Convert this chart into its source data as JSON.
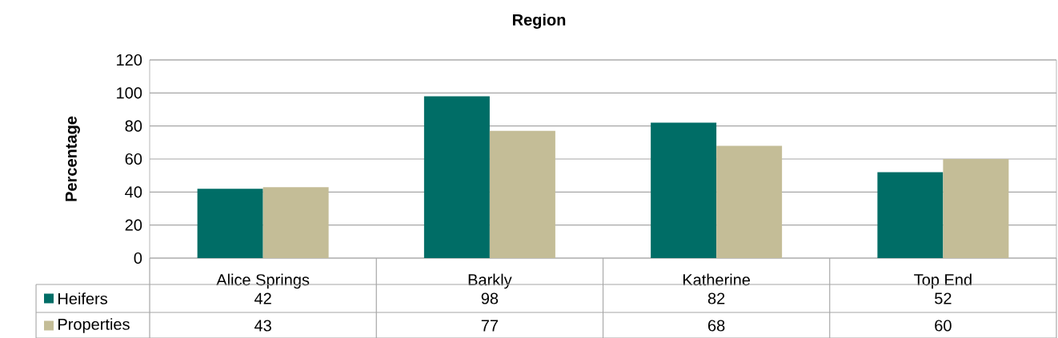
{
  "chart_data": {
    "type": "bar",
    "title": "Region",
    "ylabel": "Percentage",
    "categories": [
      "Alice Springs",
      "Barkly",
      "Katherine",
      "Top End"
    ],
    "series": [
      {
        "name": "Heifers",
        "color": "#006d66",
        "values": [
          42,
          98,
          82,
          52
        ]
      },
      {
        "name": "Properties",
        "color": "#c4bd97",
        "values": [
          43,
          77,
          68,
          60
        ]
      }
    ],
    "ylim": [
      0,
      120
    ],
    "yticks": [
      0,
      20,
      40,
      60,
      80,
      100,
      120
    ],
    "grid": "y",
    "data_labels": true,
    "legend": "bottom left"
  }
}
